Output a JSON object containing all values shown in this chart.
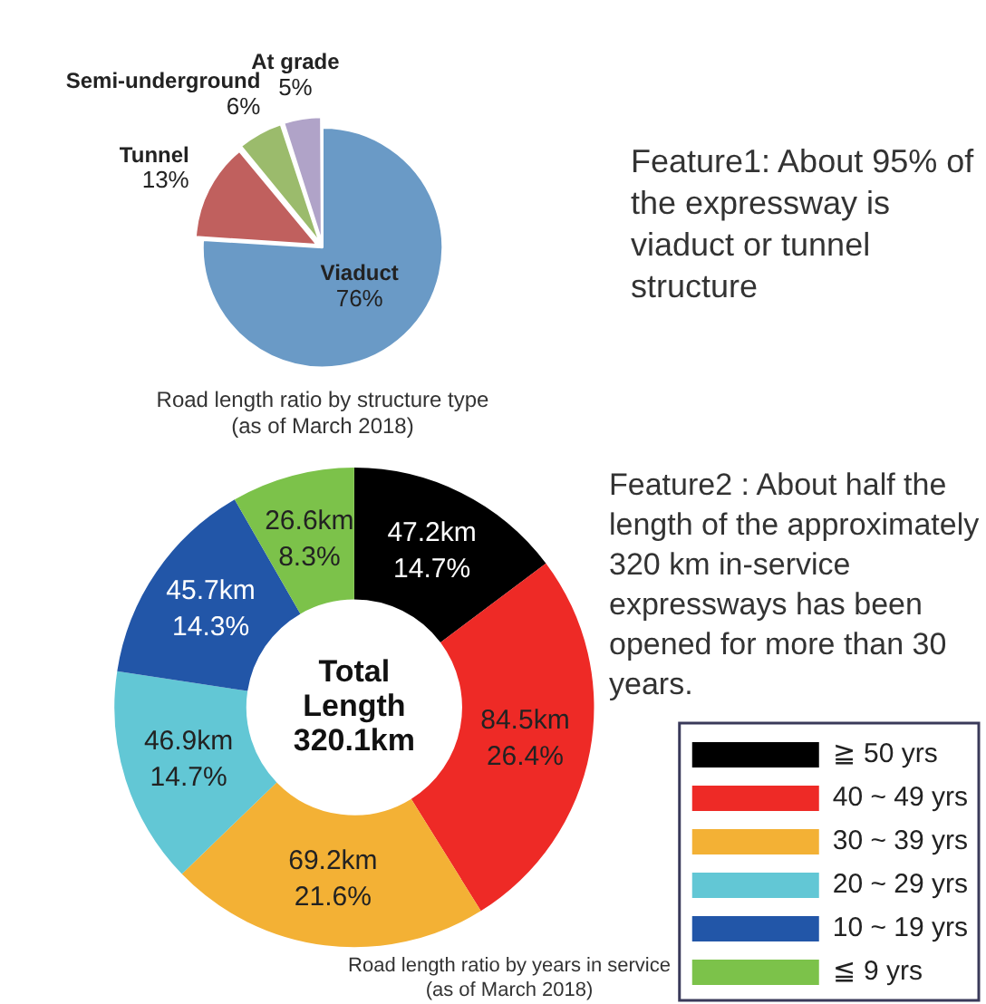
{
  "chart_data": [
    {
      "type": "pie",
      "title": "Road length ratio by structure type\n(as of March 2018)",
      "categories": [
        "Viaduct",
        "Tunnel",
        "Semi-underground",
        "At grade"
      ],
      "values": [
        76,
        13,
        6,
        5
      ],
      "colors": [
        "#6a9ac6",
        "#c0605e",
        "#9bbb6c",
        "#b0a3c8"
      ],
      "value_labels": [
        "76%",
        "13%",
        "6%",
        "5%"
      ],
      "legend": false,
      "annotations": [
        "Feature1: About 95% of the expressway is viaduct or tunnel structure"
      ]
    },
    {
      "type": "donut",
      "title": "Road length ratio by years in service\n(as of March 2018)",
      "categories": [
        "≧ 50 yrs",
        "40 ~ 49 yrs",
        "30 ~ 39 yrs",
        "20 ~ 29 yrs",
        "10 ~ 19 yrs",
        "≦ 9 yrs"
      ],
      "values": [
        47.2,
        84.5,
        69.2,
        46.9,
        45.7,
        26.6
      ],
      "colors": [
        "#000000",
        "#ee2a26",
        "#f3b135",
        "#62c7d5",
        "#2256a8",
        "#7cc24a"
      ],
      "value_labels": [
        "47.2km\n14.7%",
        "84.5km\n26.4%",
        "69.2km\n21.6%",
        "46.9km\n14.7%",
        "45.7km\n14.3%",
        "26.6km\n8.3%"
      ],
      "legend": "bottom right",
      "annotations": [
        "Total\nLength\n320.1km",
        "Feature2 : About half the length of the approximately 320 km in-service expressways has been opened for more than 30 years."
      ]
    }
  ]
}
